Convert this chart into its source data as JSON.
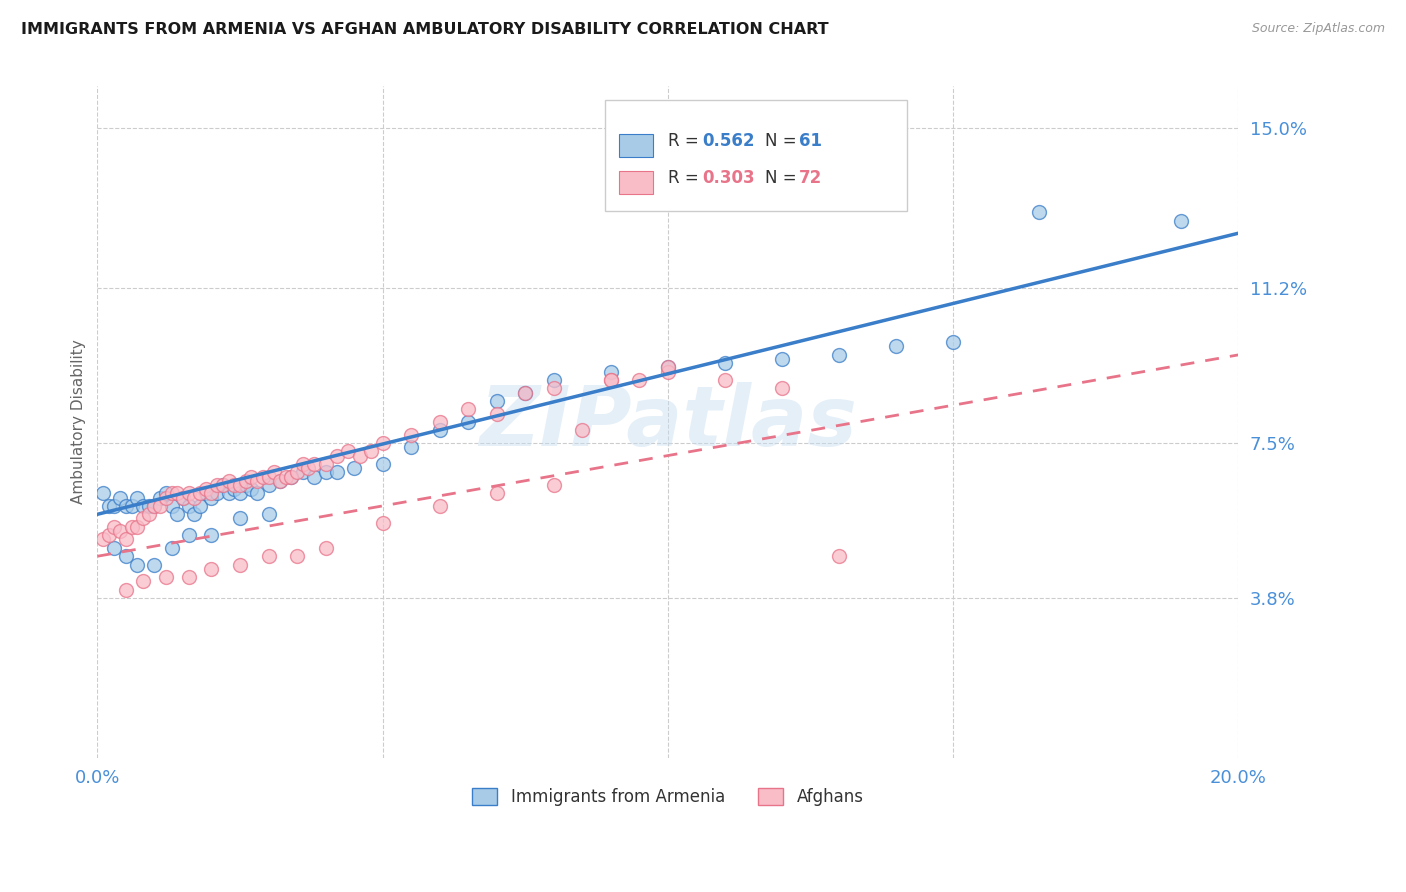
{
  "title": "IMMIGRANTS FROM ARMENIA VS AFGHAN AMBULATORY DISABILITY CORRELATION CHART",
  "source": "Source: ZipAtlas.com",
  "ylabel": "Ambulatory Disability",
  "xlim": [
    0.0,
    0.2
  ],
  "ylim": [
    0.0,
    0.16
  ],
  "yticks": [
    0.038,
    0.075,
    0.112,
    0.15
  ],
  "ytick_labels": [
    "3.8%",
    "7.5%",
    "11.2%",
    "15.0%"
  ],
  "xticks": [
    0.0,
    0.05,
    0.1,
    0.15,
    0.2
  ],
  "xtick_labels": [
    "0.0%",
    "",
    "",
    "",
    "20.0%"
  ],
  "color_armenia": "#a8cce8",
  "color_afghan": "#f9bdc8",
  "color_line_armenia": "#3a7dc9",
  "color_line_afghan": "#e8748a",
  "background": "#ffffff",
  "watermark": "ZIPatlas",
  "armenia_x": [
    0.001,
    0.002,
    0.003,
    0.004,
    0.005,
    0.006,
    0.007,
    0.008,
    0.009,
    0.01,
    0.011,
    0.012,
    0.013,
    0.014,
    0.015,
    0.016,
    0.017,
    0.018,
    0.019,
    0.02,
    0.021,
    0.022,
    0.023,
    0.024,
    0.025,
    0.026,
    0.027,
    0.028,
    0.03,
    0.032,
    0.034,
    0.036,
    0.038,
    0.04,
    0.042,
    0.045,
    0.05,
    0.055,
    0.06,
    0.065,
    0.07,
    0.075,
    0.08,
    0.09,
    0.1,
    0.11,
    0.12,
    0.13,
    0.14,
    0.15,
    0.165,
    0.19,
    0.003,
    0.005,
    0.007,
    0.01,
    0.013,
    0.016,
    0.02,
    0.025,
    0.03
  ],
  "armenia_y": [
    0.063,
    0.06,
    0.06,
    0.062,
    0.06,
    0.06,
    0.062,
    0.06,
    0.06,
    0.06,
    0.062,
    0.063,
    0.06,
    0.058,
    0.062,
    0.06,
    0.058,
    0.06,
    0.063,
    0.062,
    0.063,
    0.065,
    0.063,
    0.064,
    0.063,
    0.065,
    0.064,
    0.063,
    0.065,
    0.066,
    0.067,
    0.068,
    0.067,
    0.068,
    0.068,
    0.069,
    0.07,
    0.074,
    0.078,
    0.08,
    0.085,
    0.087,
    0.09,
    0.092,
    0.093,
    0.094,
    0.095,
    0.096,
    0.098,
    0.099,
    0.13,
    0.128,
    0.05,
    0.048,
    0.046,
    0.046,
    0.05,
    0.053,
    0.053,
    0.057,
    0.058
  ],
  "afghan_x": [
    0.001,
    0.002,
    0.003,
    0.004,
    0.005,
    0.006,
    0.007,
    0.008,
    0.009,
    0.01,
    0.011,
    0.012,
    0.013,
    0.014,
    0.015,
    0.016,
    0.017,
    0.018,
    0.019,
    0.02,
    0.021,
    0.022,
    0.023,
    0.024,
    0.025,
    0.026,
    0.027,
    0.028,
    0.029,
    0.03,
    0.031,
    0.032,
    0.033,
    0.034,
    0.035,
    0.036,
    0.037,
    0.038,
    0.04,
    0.042,
    0.044,
    0.046,
    0.048,
    0.05,
    0.055,
    0.06,
    0.065,
    0.07,
    0.075,
    0.08,
    0.085,
    0.09,
    0.095,
    0.1,
    0.11,
    0.12,
    0.005,
    0.008,
    0.012,
    0.016,
    0.02,
    0.025,
    0.03,
    0.035,
    0.04,
    0.05,
    0.06,
    0.07,
    0.08,
    0.09,
    0.1,
    0.13
  ],
  "afghan_y": [
    0.052,
    0.053,
    0.055,
    0.054,
    0.052,
    0.055,
    0.055,
    0.057,
    0.058,
    0.06,
    0.06,
    0.062,
    0.063,
    0.063,
    0.062,
    0.063,
    0.062,
    0.063,
    0.064,
    0.063,
    0.065,
    0.065,
    0.066,
    0.065,
    0.065,
    0.066,
    0.067,
    0.066,
    0.067,
    0.067,
    0.068,
    0.066,
    0.067,
    0.067,
    0.068,
    0.07,
    0.069,
    0.07,
    0.07,
    0.072,
    0.073,
    0.072,
    0.073,
    0.075,
    0.077,
    0.08,
    0.083,
    0.082,
    0.087,
    0.088,
    0.078,
    0.09,
    0.09,
    0.092,
    0.09,
    0.088,
    0.04,
    0.042,
    0.043,
    0.043,
    0.045,
    0.046,
    0.048,
    0.048,
    0.05,
    0.056,
    0.06,
    0.063,
    0.065,
    0.09,
    0.093,
    0.048
  ],
  "trend_armenia_x0": 0.0,
  "trend_armenia_y0": 0.058,
  "trend_armenia_x1": 0.2,
  "trend_armenia_y1": 0.125,
  "trend_afghan_x0": 0.0,
  "trend_afghan_y0": 0.048,
  "trend_afghan_x1": 0.2,
  "trend_afghan_y1": 0.096
}
